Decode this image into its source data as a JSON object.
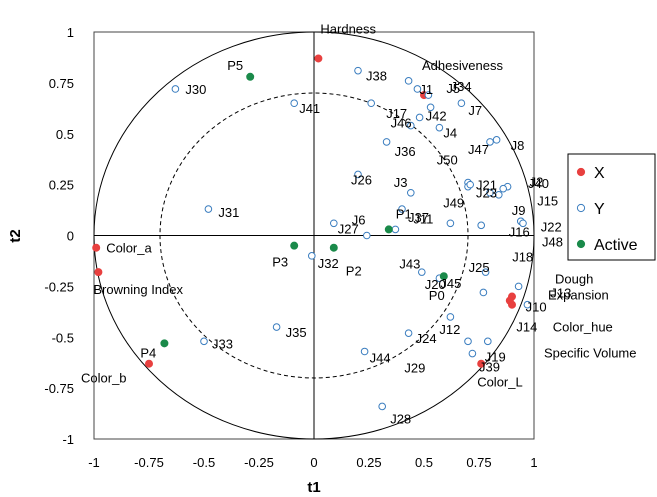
{
  "chart_data": {
    "type": "scatter",
    "title": "",
    "xlabel": "t1",
    "ylabel": "t2",
    "xlim": [
      -1,
      1
    ],
    "ylim": [
      -1,
      1
    ],
    "xticks": [
      "-1",
      "-0.75",
      "-0.5",
      "-0.25",
      "0",
      "0.25",
      "0.5",
      "0.75",
      "1"
    ],
    "yticks": [
      "-1",
      "-0.75",
      "-0.5",
      "-0.25",
      "0",
      "0.25",
      "0.5",
      "0.75",
      "1"
    ],
    "grid": false,
    "circles": [
      1.0,
      0.7
    ],
    "legend": {
      "position": "right",
      "entries": [
        {
          "label": "X",
          "color": "#e8403f",
          "marker": "filled"
        },
        {
          "label": "Y",
          "color": "#3a7dbf",
          "marker": "open"
        },
        {
          "label": "Active",
          "color": "#1a8a4a",
          "marker": "filled"
        }
      ]
    },
    "series": [
      {
        "name": "X",
        "points": [
          {
            "label": "Hardness",
            "x": 0.02,
            "y": 0.87
          },
          {
            "label": "Adhesiveness",
            "x": 0.5,
            "y": 0.69
          },
          {
            "label": "Color_a",
            "x": -0.99,
            "y": -0.06
          },
          {
            "label": "Browning Index",
            "x": -0.98,
            "y": -0.18
          },
          {
            "label": "Color_b",
            "x": -0.75,
            "y": -0.63
          },
          {
            "label": "Color_L",
            "x": 0.76,
            "y": -0.63
          },
          {
            "label": "Dough Expansion",
            "x": 0.9,
            "y": -0.3
          },
          {
            "label": "Color_hue",
            "x": 0.89,
            "y": -0.32
          },
          {
            "label": "Specific Volume",
            "x": 0.9,
            "y": -0.34
          }
        ]
      },
      {
        "name": "Y",
        "points": [
          {
            "label": "J1",
            "x": 0.47,
            "y": 0.72
          },
          {
            "label": "J2",
            "x": 0.88,
            "y": 0.24
          },
          {
            "label": "J3",
            "x": 0.44,
            "y": 0.21
          },
          {
            "label": "J4",
            "x": 0.57,
            "y": 0.53
          },
          {
            "label": "J5",
            "x": 0.52,
            "y": 0.69
          },
          {
            "label": "J6",
            "x": 0.24,
            "y": 0.0
          },
          {
            "label": "J7",
            "x": 0.67,
            "y": 0.65
          },
          {
            "label": "J8",
            "x": 0.83,
            "y": 0.47
          },
          {
            "label": "J9",
            "x": 0.84,
            "y": 0.2
          },
          {
            "label": "J10",
            "x": 0.93,
            "y": -0.25
          },
          {
            "label": "J11",
            "x": 0.62,
            "y": 0.06
          },
          {
            "label": "J12",
            "x": 0.62,
            "y": -0.4
          },
          {
            "label": "J13",
            "x": 0.77,
            "y": -0.28
          },
          {
            "label": "J14",
            "x": 0.97,
            "y": -0.34
          },
          {
            "label": "J15",
            "x": 0.86,
            "y": 0.23
          },
          {
            "label": "J16",
            "x": 0.94,
            "y": 0.07
          },
          {
            "label": "J17",
            "x": 0.26,
            "y": 0.65
          },
          {
            "label": "J18",
            "x": 0.76,
            "y": 0.05
          },
          {
            "label": "J19",
            "x": 0.79,
            "y": -0.52
          },
          {
            "label": "J20",
            "x": 0.49,
            "y": -0.18
          },
          {
            "label": "J21",
            "x": 0.7,
            "y": 0.26
          },
          {
            "label": "J22",
            "x": 0.94,
            "y": 0.07
          },
          {
            "label": "J23",
            "x": 0.7,
            "y": 0.24
          },
          {
            "label": "J24",
            "x": 0.43,
            "y": -0.48
          },
          {
            "label": "J25",
            "x": 0.78,
            "y": -0.18
          },
          {
            "label": "J26",
            "x": 0.2,
            "y": 0.3
          },
          {
            "label": "J27",
            "x": 0.09,
            "y": 0.06
          },
          {
            "label": "J28",
            "x": 0.31,
            "y": -0.84
          },
          {
            "label": "J29",
            "x": 0.72,
            "y": -0.58
          },
          {
            "label": "J30",
            "x": -0.63,
            "y": 0.72
          },
          {
            "label": "J31",
            "x": -0.48,
            "y": 0.13
          },
          {
            "label": "J32",
            "x": -0.01,
            "y": -0.1
          },
          {
            "label": "J33",
            "x": -0.5,
            "y": -0.52
          },
          {
            "label": "J34",
            "x": 0.43,
            "y": 0.76
          },
          {
            "label": "J35",
            "x": -0.17,
            "y": -0.45
          },
          {
            "label": "J36",
            "x": 0.33,
            "y": 0.46
          },
          {
            "label": "J37",
            "x": 0.4,
            "y": 0.13
          },
          {
            "label": "J38",
            "x": 0.2,
            "y": 0.81
          },
          {
            "label": "J39",
            "x": 0.7,
            "y": -0.52
          },
          {
            "label": "J40",
            "x": 0.8,
            "y": 0.21
          },
          {
            "label": "J41",
            "x": -0.09,
            "y": 0.65
          },
          {
            "label": "J42",
            "x": 0.53,
            "y": 0.63
          },
          {
            "label": "J43",
            "x": 0.37,
            "y": 0.03
          },
          {
            "label": "J44",
            "x": 0.23,
            "y": -0.57
          },
          {
            "label": "J45",
            "x": 0.57,
            "y": -0.21
          },
          {
            "label": "J46",
            "x": 0.48,
            "y": 0.58
          },
          {
            "label": "J47",
            "x": 0.8,
            "y": 0.46
          },
          {
            "label": "J48",
            "x": 0.95,
            "y": 0.06
          },
          {
            "label": "J49",
            "x": 0.71,
            "y": 0.25
          },
          {
            "label": "J50",
            "x": 0.44,
            "y": 0.54
          }
        ]
      },
      {
        "name": "Active",
        "points": [
          {
            "label": "P5",
            "x": -0.29,
            "y": 0.78
          },
          {
            "label": "P1",
            "x": 0.34,
            "y": 0.03
          },
          {
            "label": "P3",
            "x": -0.09,
            "y": -0.05
          },
          {
            "label": "P2",
            "x": 0.09,
            "y": -0.06
          },
          {
            "label": "P0",
            "x": 0.59,
            "y": -0.2
          },
          {
            "label": "P4",
            "x": -0.68,
            "y": -0.53
          }
        ]
      }
    ],
    "labels": [
      {
        "text": "Hardness",
        "series": "X",
        "x": 0.02,
        "y": 0.87,
        "dx": 2,
        "dy": -30
      },
      {
        "text": "Adhesiveness",
        "series": "X",
        "x": 0.5,
        "y": 0.69,
        "dx": -2,
        "dy": -30
      },
      {
        "text": "Color_a",
        "series": "X",
        "x": -0.99,
        "y": -0.06,
        "dx": 10,
        "dy": 0
      },
      {
        "text": "Browning Index",
        "series": "X",
        "x": -0.98,
        "y": -0.18,
        "dx": -5,
        "dy": 17
      },
      {
        "text": "Color_b",
        "series": "X",
        "x": -0.75,
        "y": -0.63,
        "dx": -68,
        "dy": 14
      },
      {
        "text": "Color_L",
        "series": "X",
        "x": 0.76,
        "y": -0.63,
        "dx": -4,
        "dy": 18
      },
      {
        "text": "Dough",
        "series": "X",
        "x": 0.9,
        "y": -0.3,
        "dx": 43,
        "dy": -18
      },
      {
        "text": "Expansion",
        "series": "X",
        "x": 0.9,
        "y": -0.3,
        "dx": 36,
        "dy": -2
      },
      {
        "text": "Color_hue",
        "series": "X",
        "x": 0.89,
        "y": -0.32,
        "dx": 43,
        "dy": 26
      },
      {
        "text": "Specific Volume",
        "series": "X",
        "x": 0.9,
        "y": -0.34,
        "dx": 32,
        "dy": 48
      },
      {
        "text": "P5",
        "series": "Active",
        "x": -0.29,
        "y": 0.78,
        "dx": -23,
        "dy": -12
      },
      {
        "text": "P1",
        "series": "Active",
        "x": 0.34,
        "y": 0.03,
        "dx": 7,
        "dy": -16
      },
      {
        "text": "P3",
        "series": "Active",
        "x": -0.09,
        "y": -0.05,
        "dx": -22,
        "dy": 16
      },
      {
        "text": "P2",
        "series": "Active",
        "x": 0.09,
        "y": -0.06,
        "dx": 12,
        "dy": 23
      },
      {
        "text": "P0",
        "series": "Active",
        "x": 0.59,
        "y": -0.2,
        "dx": -15,
        "dy": 19
      },
      {
        "text": "P4",
        "series": "Active",
        "x": -0.68,
        "y": -0.53,
        "dx": -24,
        "dy": 9
      },
      {
        "text": "J1",
        "series": "Y",
        "x": 0.47,
        "y": 0.72,
        "dx": 2,
        "dy": 0
      },
      {
        "text": "J2",
        "series": "Y",
        "x": 0.88,
        "y": 0.24,
        "dx": 22,
        "dy": -5
      },
      {
        "text": "J3",
        "series": "Y",
        "x": 0.44,
        "y": 0.21,
        "dx": -17,
        "dy": -11
      },
      {
        "text": "J4",
        "series": "Y",
        "x": 0.57,
        "y": 0.53,
        "dx": 4,
        "dy": 5
      },
      {
        "text": "J5",
        "series": "Y",
        "x": 0.52,
        "y": 0.69,
        "dx": 18,
        "dy": -7
      },
      {
        "text": "J6",
        "series": "Y",
        "x": 0.24,
        "y": 0.0,
        "dx": -15,
        "dy": -16
      },
      {
        "text": "J7",
        "series": "Y",
        "x": 0.67,
        "y": 0.65,
        "dx": 7,
        "dy": 7
      },
      {
        "text": "J8",
        "series": "Y",
        "x": 0.83,
        "y": 0.47,
        "dx": 14,
        "dy": 5
      },
      {
        "text": "J9",
        "series": "Y",
        "x": 0.84,
        "y": 0.2,
        "dx": 13,
        "dy": 15
      },
      {
        "text": "J10",
        "series": "Y",
        "x": 0.93,
        "y": -0.25,
        "dx": 7,
        "dy": 20
      },
      {
        "text": "J11",
        "series": "Y",
        "x": 0.62,
        "y": 0.06,
        "dx": -37,
        "dy": -5
      },
      {
        "text": "J12",
        "series": "Y",
        "x": 0.62,
        "y": -0.4,
        "dx": -11,
        "dy": 12
      },
      {
        "text": "J13",
        "series": "Y",
        "x": 0.77,
        "y": -0.28,
        "dx": 67,
        "dy": 0
      },
      {
        "text": "J14",
        "series": "Y",
        "x": 0.97,
        "y": -0.34,
        "dx": -11,
        "dy": 22
      },
      {
        "text": "J15",
        "series": "Y",
        "x": 0.86,
        "y": 0.23,
        "dx": 34,
        "dy": 12
      },
      {
        "text": "J16",
        "series": "Y",
        "x": 0.94,
        "y": 0.07,
        "dx": -12,
        "dy": 10
      },
      {
        "text": "J17",
        "series": "Y",
        "x": 0.26,
        "y": 0.65,
        "dx": 15,
        "dy": 10
      },
      {
        "text": "J18",
        "series": "Y",
        "x": 0.76,
        "y": 0.05,
        "dx": 31,
        "dy": 31
      },
      {
        "text": "J19",
        "series": "Y",
        "x": 0.79,
        "y": -0.52,
        "dx": -3,
        "dy": 15
      },
      {
        "text": "J20",
        "series": "Y",
        "x": 0.49,
        "y": -0.18,
        "dx": 3,
        "dy": 12
      },
      {
        "text": "J21",
        "series": "Y",
        "x": 0.7,
        "y": 0.26,
        "dx": 8,
        "dy": 2
      },
      {
        "text": "J22",
        "series": "Y",
        "x": 0.94,
        "y": 0.07,
        "dx": 20,
        "dy": 5
      },
      {
        "text": "J23",
        "series": "Y",
        "x": 0.7,
        "y": 0.24,
        "dx": 8,
        "dy": 6
      },
      {
        "text": "J24",
        "series": "Y",
        "x": 0.43,
        "y": -0.48,
        "dx": 7,
        "dy": 5
      },
      {
        "text": "J25",
        "series": "Y",
        "x": 0.78,
        "y": -0.18,
        "dx": -17,
        "dy": -5
      },
      {
        "text": "J26",
        "series": "Y",
        "x": 0.2,
        "y": 0.3,
        "dx": -7,
        "dy": 5
      },
      {
        "text": "J27",
        "series": "Y",
        "x": 0.09,
        "y": 0.06,
        "dx": 4,
        "dy": 5
      },
      {
        "text": "J28",
        "series": "Y",
        "x": 0.31,
        "y": -0.84,
        "dx": 8,
        "dy": 12
      },
      {
        "text": "J29",
        "series": "Y",
        "x": 0.72,
        "y": -0.58,
        "dx": -68,
        "dy": 14
      },
      {
        "text": "J30",
        "series": "Y",
        "x": -0.63,
        "y": 0.72,
        "dx": 10,
        "dy": 0
      },
      {
        "text": "J31",
        "series": "Y",
        "x": -0.48,
        "y": 0.13,
        "dx": 10,
        "dy": 3
      },
      {
        "text": "J32",
        "series": "Y",
        "x": -0.01,
        "y": -0.1,
        "dx": 6,
        "dy": 7
      },
      {
        "text": "J33",
        "series": "Y",
        "x": -0.5,
        "y": -0.52,
        "dx": 8,
        "dy": 2
      },
      {
        "text": "J34",
        "series": "Y",
        "x": 0.43,
        "y": 0.76,
        "dx": 42,
        "dy": 5
      },
      {
        "text": "J35",
        "series": "Y",
        "x": -0.17,
        "y": -0.45,
        "dx": 9,
        "dy": 5
      },
      {
        "text": "J36",
        "series": "Y",
        "x": 0.33,
        "y": 0.46,
        "dx": 8,
        "dy": 9
      },
      {
        "text": "J37",
        "series": "Y",
        "x": 0.4,
        "y": 0.13,
        "dx": 6,
        "dy": 8
      },
      {
        "text": "J38",
        "series": "Y",
        "x": 0.2,
        "y": 0.81,
        "dx": 8,
        "dy": 5
      },
      {
        "text": "J39",
        "series": "Y",
        "x": 0.7,
        "y": -0.52,
        "dx": 11,
        "dy": 25
      },
      {
        "text": "J40",
        "series": "Y",
        "x": 0.8,
        "y": 0.21,
        "dx": 38,
        "dy": -10
      },
      {
        "text": "J41",
        "series": "Y",
        "x": -0.09,
        "y": 0.65,
        "dx": 5,
        "dy": 5
      },
      {
        "text": "J42",
        "series": "Y",
        "x": 0.53,
        "y": 0.63,
        "dx": -5,
        "dy": 8
      },
      {
        "text": "J43",
        "series": "Y",
        "x": 0.37,
        "y": 0.03,
        "dx": 4,
        "dy": 34
      },
      {
        "text": "J44",
        "series": "Y",
        "x": 0.23,
        "y": -0.57,
        "dx": 5,
        "dy": 6
      },
      {
        "text": "J45",
        "series": "Y",
        "x": 0.57,
        "y": -0.21,
        "dx": 1,
        "dy": 5
      },
      {
        "text": "J46",
        "series": "Y",
        "x": 0.48,
        "y": 0.58,
        "dx": -29,
        "dy": 5
      },
      {
        "text": "J47",
        "series": "Y",
        "x": 0.8,
        "y": 0.46,
        "dx": -22,
        "dy": 7
      },
      {
        "text": "J48",
        "series": "Y",
        "x": 0.95,
        "y": 0.06,
        "dx": 19,
        "dy": 18
      },
      {
        "text": "J49",
        "series": "Y",
        "x": 0.71,
        "y": 0.25,
        "dx": -27,
        "dy": 18
      },
      {
        "text": "J50",
        "series": "Y",
        "x": 0.44,
        "y": 0.54,
        "dx": 26,
        "dy": 34
      }
    ]
  }
}
